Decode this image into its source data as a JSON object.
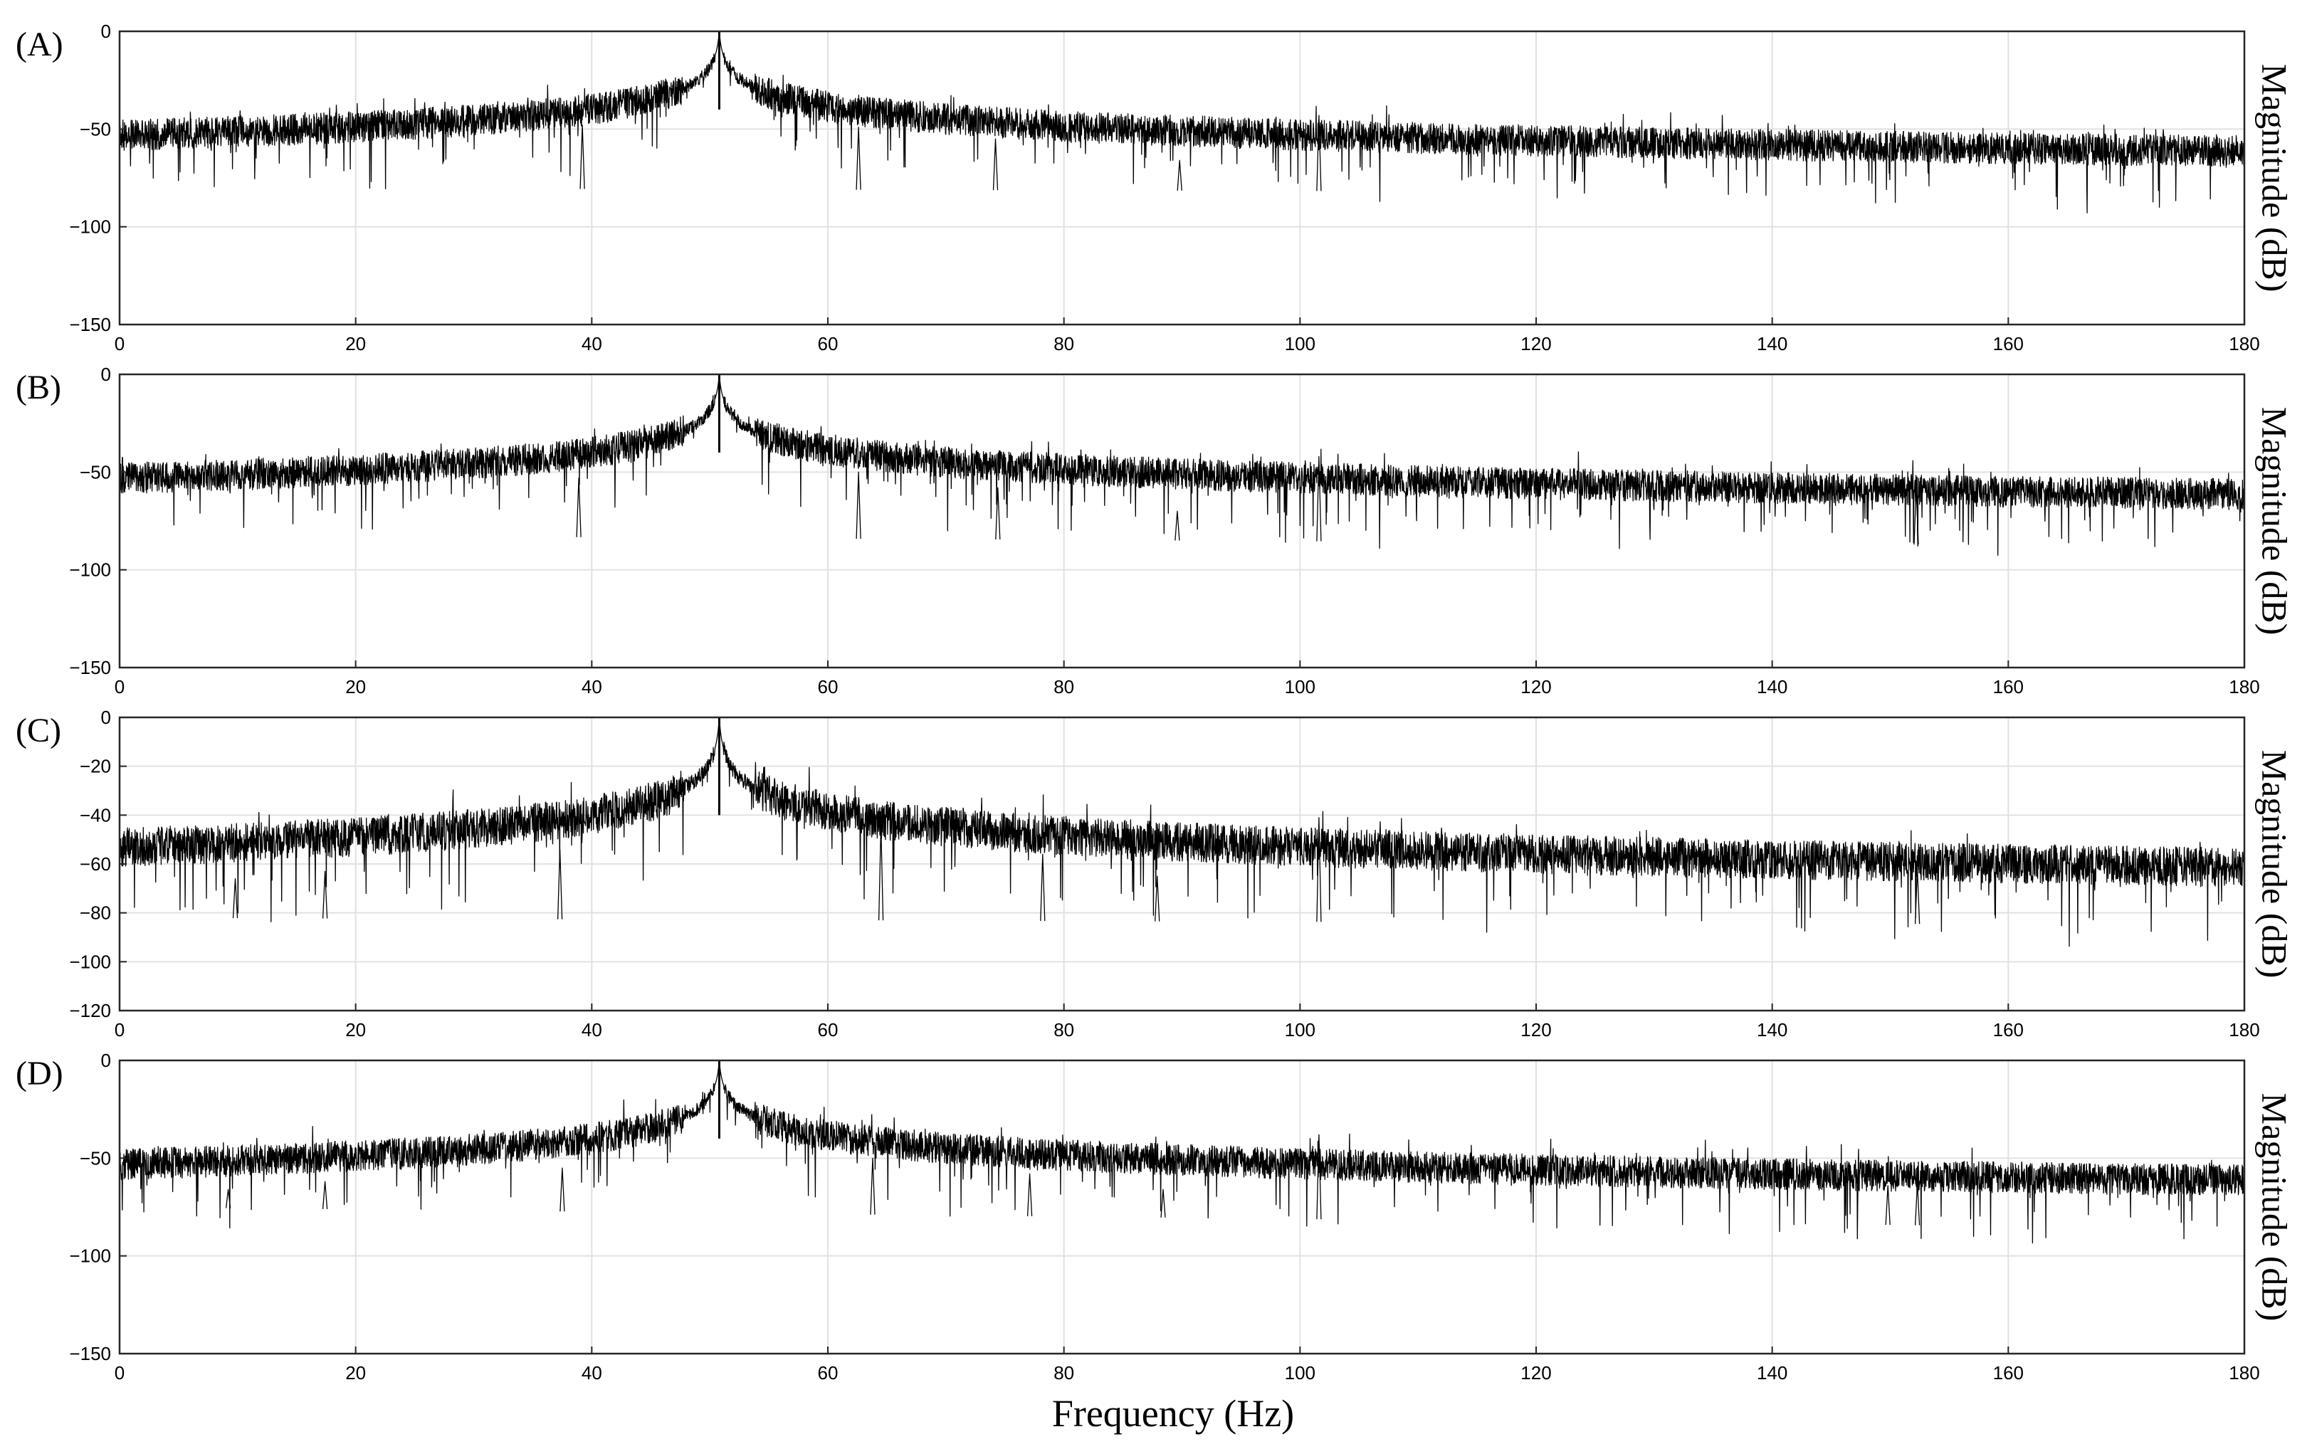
{
  "chart_data": {
    "type": "line",
    "xlabel": "Frequency (Hz)",
    "xlim": [
      0,
      180
    ],
    "xticks": [
      0,
      20,
      40,
      60,
      80,
      100,
      120,
      140,
      160,
      180
    ],
    "grid": true,
    "panels": [
      {
        "label": "(A)",
        "ylabel": "Magnitude (dB)",
        "ylim": [
          -150,
          0
        ],
        "yticks": [
          0,
          -50,
          -100,
          -150
        ],
        "ytick_labels": [
          "0",
          "−50",
          "−100",
          "−150"
        ],
        "peak": {
          "freq": 50.8,
          "db": 0
        },
        "noise_floor_db": {
          "at_0hz": -80,
          "at_180hz": -83
        },
        "spikes": [
          {
            "freq": 39.2,
            "db": -48
          },
          {
            "freq": 62.6,
            "db": -49
          },
          {
            "freq": 74.2,
            "db": -55
          },
          {
            "freq": 101.6,
            "db": -43
          },
          {
            "freq": 89.8,
            "db": -66
          }
        ]
      },
      {
        "label": "(B)",
        "ylabel": "Magnitude (dB)",
        "ylim": [
          -150,
          0
        ],
        "yticks": [
          0,
          -50,
          -100,
          -150
        ],
        "ytick_labels": [
          "0",
          "−50",
          "−100",
          "−150"
        ],
        "peak": {
          "freq": 50.8,
          "db": 0
        },
        "noise_floor_db": {
          "at_0hz": -82,
          "at_180hz": -88
        },
        "spikes": [
          {
            "freq": 38.9,
            "db": -53
          },
          {
            "freq": 62.6,
            "db": -50
          },
          {
            "freq": 74.4,
            "db": -58
          },
          {
            "freq": 101.6,
            "db": -42
          },
          {
            "freq": 152.2,
            "db": -58
          },
          {
            "freq": 89.6,
            "db": -70
          }
        ]
      },
      {
        "label": "(C)",
        "ylabel": "Magnitude (dB)",
        "ylim": [
          -120,
          0
        ],
        "yticks": [
          0,
          -20,
          -40,
          -60,
          -80,
          -100,
          -120
        ],
        "ytick_labels": [
          "0",
          "−20",
          "−40",
          "−60",
          "−80",
          "−100",
          "−120"
        ],
        "peak": {
          "freq": 50.8,
          "db": 0
        },
        "noise_floor_db": {
          "at_0hz": -82,
          "at_180hz": -85
        },
        "spikes": [
          {
            "freq": 9.8,
            "db": -66
          },
          {
            "freq": 17.4,
            "db": -63
          },
          {
            "freq": 37.3,
            "db": -54
          },
          {
            "freq": 64.5,
            "db": -44
          },
          {
            "freq": 78.2,
            "db": -56
          },
          {
            "freq": 87.9,
            "db": -65
          },
          {
            "freq": 101.6,
            "db": -41
          },
          {
            "freq": 152.3,
            "db": -62
          }
        ]
      },
      {
        "label": "(D)",
        "ylabel": "Magnitude (dB)",
        "ylim": [
          -150,
          0
        ],
        "yticks": [
          0,
          -50,
          -100,
          -150
        ],
        "ytick_labels": [
          "0",
          "−50",
          "−100",
          "−150"
        ],
        "peak": {
          "freq": 50.8,
          "db": 0
        },
        "noise_floor_db": {
          "at_0hz": -75,
          "at_180hz": -86
        },
        "spikes": [
          {
            "freq": 9.2,
            "db": -66
          },
          {
            "freq": 17.4,
            "db": -62
          },
          {
            "freq": 37.5,
            "db": -55
          },
          {
            "freq": 63.8,
            "db": -50
          },
          {
            "freq": 77.1,
            "db": -58
          },
          {
            "freq": 88.4,
            "db": -66
          },
          {
            "freq": 101.6,
            "db": -38
          },
          {
            "freq": 149.8,
            "db": -64
          },
          {
            "freq": 152.3,
            "db": -63
          }
        ]
      }
    ]
  }
}
